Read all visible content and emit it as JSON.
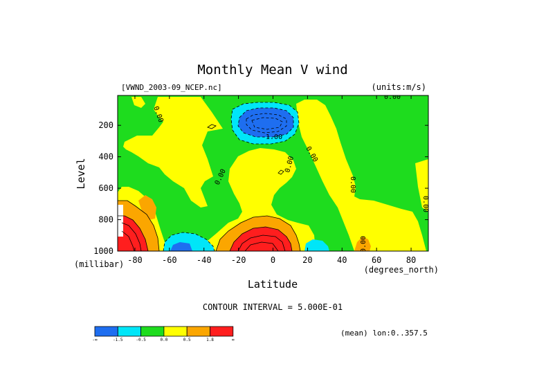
{
  "chart_data": {
    "type": "contour",
    "title": "Monthly Mean V wind",
    "file_label": "[VWND_2003-09_NCEP.nc]",
    "units_label": "(units:m/s)",
    "xlabel": "Latitude",
    "x_unit_label": "(degrees_north)",
    "ylabel": "Level",
    "y_unit_label": "(millibar)",
    "x_ticks": [
      -80,
      -60,
      -40,
      -20,
      0,
      20,
      40,
      60,
      80
    ],
    "x_tick_labels": [
      "-80",
      "-60",
      "-40",
      "-20",
      "0",
      "20",
      "40",
      "60",
      "80"
    ],
    "xlim": [
      -90,
      90
    ],
    "y_ticks": [
      200,
      400,
      600,
      800,
      1000
    ],
    "y_tick_labels": [
      "200",
      "400",
      "600",
      "800",
      "1000"
    ],
    "ylim": [
      1000,
      10
    ],
    "y_inverted": true,
    "contour_interval_text": "CONTOUR INTERVAL = 5.000E-01",
    "mean_text": "(mean) lon:0..357.5",
    "contour_labels": [
      "0.00",
      "-1.00"
    ],
    "colorbar": {
      "colors": [
        "#1e6ef0",
        "#00e6f8",
        "#1edc1e",
        "#ffff00",
        "#fba600",
        "#ff1e1e"
      ],
      "tick_labels": [
        "-∞",
        "-1.5",
        "-0.5",
        "0.0",
        "0.5",
        "1.8",
        "∞"
      ]
    },
    "regions": [
      {
        "level": "blue",
        "lat_center": 5,
        "p_center": 185,
        "min_value": "below -1.5"
      },
      {
        "level": "red",
        "lat_center": -5,
        "p_center": 960,
        "max_value": "above 1.8"
      },
      {
        "level": "red",
        "lat_center": -88,
        "p_center": 870,
        "max_value": "above 1.8"
      },
      {
        "level": "cyan",
        "lat_center": -58,
        "p_center": 975,
        "min_value": "below -0.5"
      },
      {
        "level": "cyan",
        "lat_center": 22,
        "p_center": 975,
        "min_value": "below -0.5"
      }
    ]
  },
  "colors": {
    "blue": "#1e6ef0",
    "cyan": "#00e6f8",
    "green": "#1edc1e",
    "yellow": "#ffff00",
    "orange": "#fba600",
    "red": "#ff1e1e"
  }
}
